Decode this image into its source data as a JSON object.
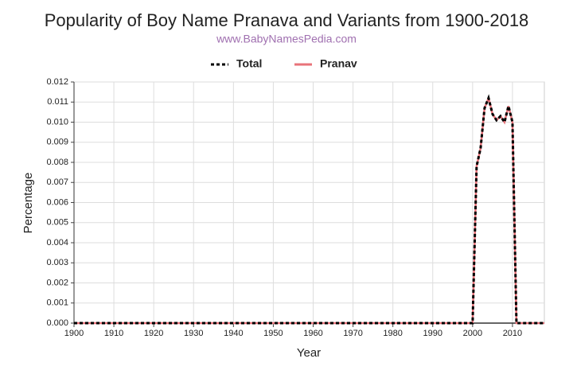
{
  "chart_data": {
    "type": "line",
    "title": "Popularity of Boy Name Pranava and Variants from 1900-2018",
    "subtitle": "www.BabyNamesPedia.com",
    "x_label": "Year",
    "y_label": "Percentage",
    "x": [
      1900,
      2000,
      2001,
      2002,
      2003,
      2004,
      2005,
      2006,
      2007,
      2008,
      2009,
      2010,
      2011,
      2018
    ],
    "series": [
      {
        "name": "Total",
        "color": "#000000",
        "dashed": true,
        "values": [
          0,
          0,
          0.0078,
          0.0087,
          0.0107,
          0.0112,
          0.0104,
          0.0101,
          0.0103,
          0.01,
          0.0108,
          0.01,
          0,
          0
        ]
      },
      {
        "name": "Pranav",
        "color": "#e8737a",
        "dashed": false,
        "values": [
          0,
          0,
          0.0078,
          0.0087,
          0.0107,
          0.0112,
          0.0104,
          0.0101,
          0.0103,
          0.01,
          0.0108,
          0.01,
          0,
          0
        ]
      }
    ],
    "xlim": [
      1900,
      2018
    ],
    "xticks": [
      1900,
      1910,
      1920,
      1930,
      1940,
      1950,
      1960,
      1970,
      1980,
      1990,
      2000,
      2010
    ],
    "ylim": [
      0,
      0.012
    ],
    "yticks": [
      {
        "value": 0,
        "label": "0.000"
      },
      {
        "value": 0.001,
        "label": "0.001"
      },
      {
        "value": 0.002,
        "label": "0.002"
      },
      {
        "value": 0.003,
        "label": "0.003"
      },
      {
        "value": 0.004,
        "label": "0.004"
      },
      {
        "value": 0.005,
        "label": "0.005"
      },
      {
        "value": 0.006,
        "label": "0.006"
      },
      {
        "value": 0.007,
        "label": "0.007"
      },
      {
        "value": 0.008,
        "label": "0.008"
      },
      {
        "value": 0.009,
        "label": "0.009"
      },
      {
        "value": 0.01,
        "label": "0.010"
      },
      {
        "value": 0.011,
        "label": "0.011"
      },
      {
        "value": 0.012,
        "label": "0.012"
      }
    ],
    "grid": true
  }
}
